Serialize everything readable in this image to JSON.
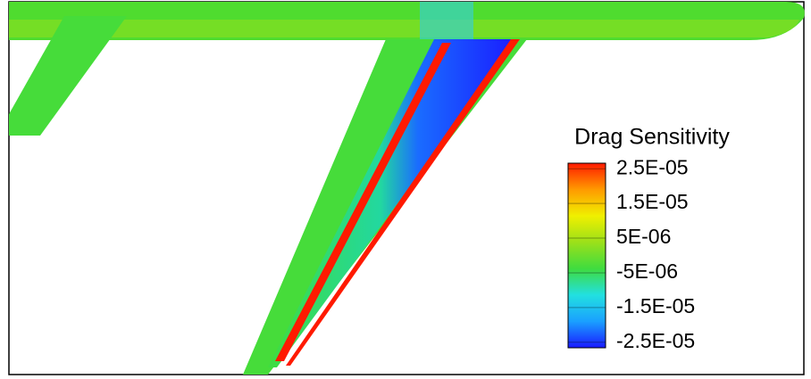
{
  "chart_data": {
    "type": "contour",
    "colorbar_label": "Drag Sensitivity",
    "clim": [
      -2.66e-05,
      2.66e-05
    ],
    "colormap": [
      "#1a1aff",
      "#1aa0ff",
      "#22e0e0",
      "#3fdc3f",
      "#9be01a",
      "#f0f000",
      "#ff9a00",
      "#ff1a00"
    ],
    "cticks": [
      {
        "value": 2.5e-05,
        "label": "2.5E-05"
      },
      {
        "value": 1.5e-05,
        "label": "1.5E-05"
      },
      {
        "value": 5e-06,
        "label": "5E-06"
      },
      {
        "value": -5e-06,
        "label": "-5E-06"
      },
      {
        "value": -1.5e-05,
        "label": "-1.5E-05"
      },
      {
        "value": -2.5e-05,
        "label": "-2.5E-05"
      }
    ]
  }
}
